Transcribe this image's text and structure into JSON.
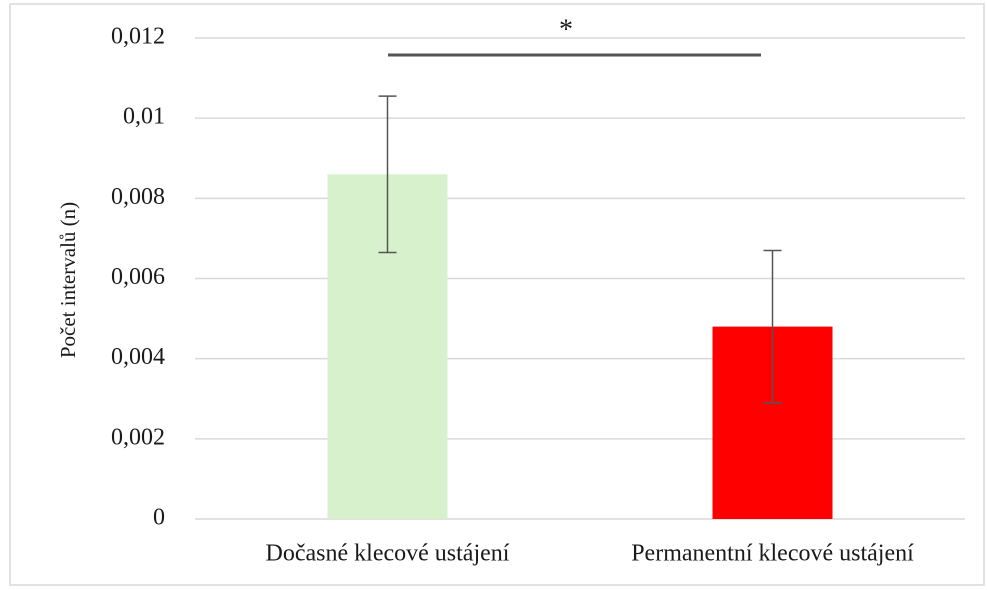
{
  "chart_data": {
    "type": "bar",
    "categories": [
      "Dočasné klecové ustájení",
      "Permanentní klecové ustájení"
    ],
    "values": [
      0.0086,
      0.0048
    ],
    "errors": [
      0.00195,
      0.0019
    ],
    "colors": [
      "#d6f1cb",
      "#ff0000"
    ],
    "y_label": "Počet intervalů  (n)",
    "annotation": "*",
    "ylim": [
      0,
      0.012
    ],
    "yticks": [
      0,
      {
        "value": 0.002,
        "label": "0,002"
      },
      {
        "value": 0.004,
        "label": "0,004"
      },
      {
        "value": 0.006,
        "label": "0,006"
      },
      {
        "value": 0.008,
        "label": "0,008"
      },
      {
        "value": 0.01,
        "label": "0,01"
      },
      {
        "value": 0.012,
        "label": "0,012"
      }
    ],
    "grid": true
  }
}
